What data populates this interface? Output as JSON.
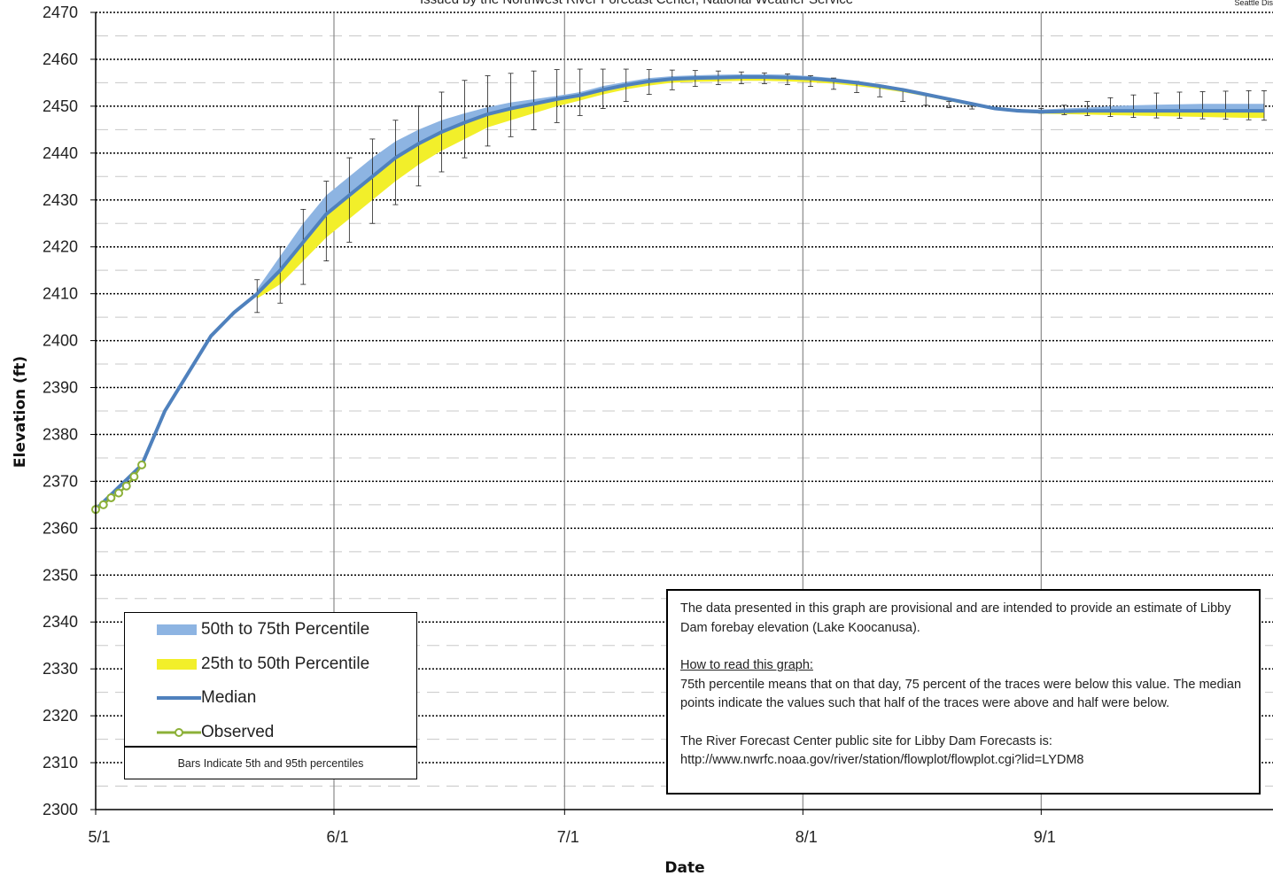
{
  "header": {
    "subtitle": "Issued by the Northwest River Forecast Center, National Weather Service",
    "corner": "Seattle Dis"
  },
  "legend": {
    "p50_75": "50th to 75th Percentile",
    "p25_50": "25th to 50th Percentile",
    "median": "Median",
    "observed": "Observed",
    "note": "Bars Indicate 5th and 95th percentiles"
  },
  "notes": {
    "para1": "The data presented in this graph are provisional and are intended to provide an estimate of Libby Dam forebay elevation (Lake Koocanusa).",
    "heading": "How to read this graph:",
    "para2": "75th percentile means that on that day, 75 percent of the traces were below this value.  The median points indicate the values such that half of  the traces were above and half were  below.",
    "para3": "The River Forecast Center public site for Libby Dam Forecasts is:",
    "url": "http://www.nwrfc.noaa.gov/river/station/flowplot/flowplot.cgi?lid=LYDM8"
  },
  "colors": {
    "p50_75": "#8db4e2",
    "p25_50": "#f2ef2a",
    "median": "#4f81bd",
    "observed": "#8cb038",
    "whisker": "#222222"
  },
  "chart_data": {
    "type": "line",
    "xlabel": "Date",
    "ylabel": "Elevation (ft)",
    "ylim": [
      2300,
      2470
    ],
    "yticks": [
      2300,
      2310,
      2320,
      2330,
      2340,
      2350,
      2360,
      2370,
      2380,
      2390,
      2400,
      2410,
      2420,
      2430,
      2440,
      2450,
      2460,
      2470
    ],
    "xtick_labels": [
      "5/1",
      "6/1",
      "7/1",
      "8/1",
      "9/1"
    ],
    "xtick_days": [
      0,
      31,
      61,
      92,
      123
    ],
    "xlim_days": [
      0,
      152
    ],
    "grid": true,
    "legend_position": "bottom-left",
    "observed": {
      "x_days": [
        0,
        1,
        2,
        3,
        4,
        5,
        6
      ],
      "y": [
        2364,
        2365,
        2366.5,
        2367.5,
        2369,
        2371,
        2373.5
      ]
    },
    "median": {
      "x_days": [
        0,
        6,
        9,
        12,
        15,
        18,
        21,
        24,
        27,
        30,
        33,
        36,
        39,
        42,
        45,
        48,
        51,
        54,
        57,
        60,
        63,
        66,
        69,
        72,
        75,
        78,
        81,
        84,
        87,
        90,
        93,
        96,
        99,
        102,
        105,
        108,
        111,
        114,
        117,
        120,
        123,
        126,
        129,
        132,
        135,
        138,
        141,
        144,
        147,
        150,
        152
      ],
      "y": [
        2364,
        2373.5,
        2385,
        2393,
        2401,
        2406,
        2410,
        2415,
        2421,
        2427,
        2431,
        2435,
        2439,
        2442,
        2444.5,
        2446.5,
        2448.3,
        2449.5,
        2450.5,
        2451.5,
        2452.3,
        2453.5,
        2454.5,
        2455.3,
        2455.8,
        2456,
        2456.1,
        2456.2,
        2456.2,
        2456.1,
        2455.9,
        2455.5,
        2455,
        2454.3,
        2453.5,
        2452.5,
        2451.5,
        2450.5,
        2449.5,
        2449,
        2448.8,
        2448.9,
        2449,
        2449,
        2449,
        2449,
        2449,
        2449,
        2449,
        2449,
        2449
      ]
    },
    "band_50_75": {
      "x_days": [
        21,
        24,
        27,
        30,
        33,
        36,
        39,
        42,
        45,
        48,
        51,
        54,
        57,
        60,
        63,
        66,
        69,
        72,
        75,
        78,
        81,
        84,
        87,
        90,
        93,
        96,
        99,
        102,
        105,
        108,
        111,
        114,
        117,
        120,
        123,
        126,
        129,
        132,
        135,
        138,
        141,
        144,
        147,
        150,
        152
      ],
      "lower": [
        2410,
        2415,
        2421,
        2427,
        2431,
        2435,
        2439,
        2442,
        2444.5,
        2446.5,
        2448.3,
        2449.5,
        2450.5,
        2451.5,
        2452.3,
        2453.5,
        2454.5,
        2455.3,
        2455.8,
        2456,
        2456.1,
        2456.2,
        2456.2,
        2456.1,
        2455.9,
        2455.5,
        2455,
        2454.3,
        2453.5,
        2452.5,
        2451.5,
        2450.5,
        2449.5,
        2449,
        2448.8,
        2448.9,
        2449,
        2449,
        2449,
        2449,
        2449,
        2449,
        2449,
        2449,
        2449
      ],
      "upper": [
        2411,
        2418,
        2425,
        2431,
        2435,
        2439,
        2442.5,
        2445,
        2447,
        2448.5,
        2449.8,
        2450.8,
        2451.5,
        2452.2,
        2453,
        2454.3,
        2455.2,
        2456,
        2456.4,
        2456.6,
        2456.7,
        2456.8,
        2456.8,
        2456.7,
        2456.4,
        2456,
        2455.4,
        2454.7,
        2453.8,
        2452.8,
        2451.8,
        2450.7,
        2449.8,
        2449.4,
        2449.3,
        2449.5,
        2449.7,
        2450,
        2450.2,
        2450.3,
        2450.4,
        2450.5,
        2450.5,
        2450.5,
        2450.5
      ]
    },
    "band_25_50": {
      "x_days": [
        21,
        24,
        27,
        30,
        33,
        36,
        39,
        42,
        45,
        48,
        51,
        54,
        57,
        60,
        63,
        66,
        69,
        72,
        75,
        78,
        81,
        84,
        87,
        90,
        93,
        96,
        99,
        102,
        105,
        108,
        111,
        114,
        117,
        120,
        123,
        126,
        129,
        132,
        135,
        138,
        141,
        144,
        147,
        150,
        152
      ],
      "lower": [
        2409,
        2412,
        2417,
        2422,
        2426,
        2430,
        2434,
        2437.5,
        2440.5,
        2443,
        2445.5,
        2447,
        2448.5,
        2450,
        2451.2,
        2452.5,
        2453.6,
        2454.4,
        2455,
        2455.2,
        2455.3,
        2455.4,
        2455.4,
        2455.3,
        2455.1,
        2454.8,
        2454.3,
        2453.7,
        2453,
        2452.1,
        2451.1,
        2450.1,
        2449.2,
        2448.7,
        2448.4,
        2448.3,
        2448.2,
        2448.1,
        2448,
        2447.9,
        2447.8,
        2447.7,
        2447.6,
        2447.5,
        2447.5
      ],
      "upper": [
        2410,
        2415,
        2421,
        2427,
        2431,
        2435,
        2439,
        2442,
        2444.5,
        2446.5,
        2448.3,
        2449.5,
        2450.5,
        2451.5,
        2452.3,
        2453.5,
        2454.5,
        2455.3,
        2455.8,
        2456,
        2456.1,
        2456.2,
        2456.2,
        2456.1,
        2455.9,
        2455.5,
        2455,
        2454.3,
        2453.5,
        2452.5,
        2451.5,
        2450.5,
        2449.5,
        2449,
        2448.8,
        2448.9,
        2449,
        2449,
        2449,
        2449,
        2449,
        2449,
        2449,
        2449,
        2449
      ]
    },
    "whiskers": {
      "x_days": [
        21,
        24,
        27,
        30,
        33,
        36,
        39,
        42,
        45,
        48,
        51,
        54,
        57,
        60,
        63,
        66,
        69,
        72,
        75,
        78,
        81,
        84,
        87,
        90,
        93,
        96,
        99,
        102,
        105,
        108,
        111,
        114,
        117,
        120,
        123,
        126,
        129,
        132,
        135,
        138,
        141,
        144,
        147,
        150,
        152
      ],
      "p5": [
        2406,
        2408,
        2412,
        2417,
        2421,
        2425,
        2429,
        2433,
        2436,
        2439,
        2441.5,
        2443.5,
        2445,
        2446.5,
        2448,
        2449.5,
        2451,
        2452.5,
        2453.5,
        2454.2,
        2454.6,
        2454.8,
        2454.8,
        2454.6,
        2454.2,
        2453.6,
        2452.9,
        2452,
        2451,
        2450.2,
        2449.7,
        2449.4,
        2449.3,
        2449,
        2448.5,
        2448.2,
        2448,
        2447.8,
        2447.6,
        2447.5,
        2447.4,
        2447.3,
        2447.2,
        2447.1,
        2447
      ],
      "p95": [
        2413,
        2420,
        2428,
        2434,
        2439,
        2443,
        2447,
        2450,
        2453,
        2455.5,
        2456.5,
        2457,
        2457.5,
        2457.8,
        2457.9,
        2457.9,
        2457.9,
        2457.8,
        2457.7,
        2457.6,
        2457.5,
        2457.3,
        2457.1,
        2456.9,
        2456.5,
        2456,
        2455.3,
        2454.5,
        2453.5,
        2452.3,
        2451,
        2450,
        2449.5,
        2449.3,
        2449.5,
        2450.2,
        2451,
        2451.8,
        2452.4,
        2452.8,
        2453,
        2453.1,
        2453.2,
        2453.3,
        2453.3
      ]
    }
  }
}
